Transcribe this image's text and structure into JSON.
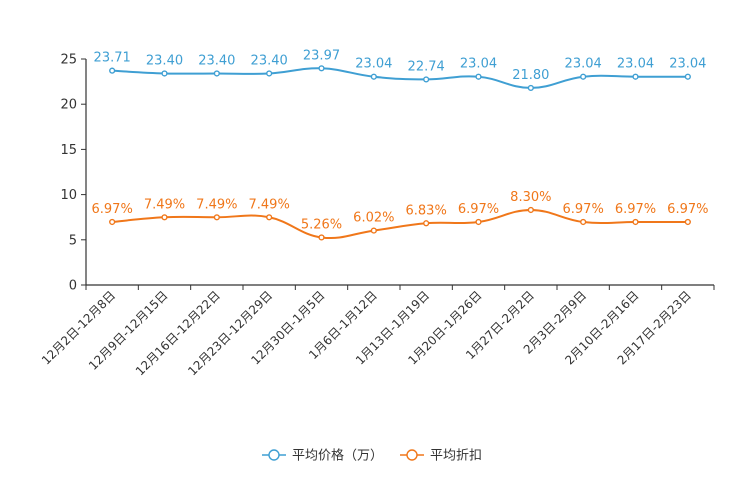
{
  "chart_data": {
    "type": "line",
    "title": "",
    "xlabel": "",
    "ylabel": "",
    "ylim": [
      0,
      25
    ],
    "yticks": [
      0,
      5,
      10,
      15,
      20,
      25
    ],
    "categories": [
      "12月2日-12月8日",
      "12月9日-12月15日",
      "12月16日-12月22日",
      "12月23日-12月29日",
      "12月30日-1月5日",
      "1月6日-1月12日",
      "1月13日-1月19日",
      "1月20日-1月26日",
      "1月27日-2月2日",
      "2月3日-2月9日",
      "2月10日-2月16日",
      "2月17日-2月23日"
    ],
    "series": [
      {
        "name": "平均价格（万）",
        "color": "#3f9fd3",
        "values": [
          23.71,
          23.4,
          23.4,
          23.4,
          23.97,
          23.04,
          22.74,
          23.04,
          21.8,
          23.04,
          23.04,
          23.04
        ],
        "labels": [
          "23.71",
          "23.40",
          "23.40",
          "23.40",
          "23.97",
          "23.04",
          "22.74",
          "23.04",
          "21.80",
          "23.04",
          "23.04",
          "23.04"
        ]
      },
      {
        "name": "平均折扣",
        "color": "#f0771a",
        "values": [
          6.97,
          7.49,
          7.49,
          7.49,
          5.26,
          6.02,
          6.83,
          6.97,
          8.3,
          6.97,
          6.97,
          6.97
        ],
        "labels": [
          "6.97%",
          "7.49%",
          "7.49%",
          "7.49%",
          "5.26%",
          "6.02%",
          "6.83%",
          "6.97%",
          "8.30%",
          "6.97%",
          "6.97%",
          "6.97%"
        ]
      }
    ],
    "grid": false,
    "legend": "bottom-center"
  }
}
